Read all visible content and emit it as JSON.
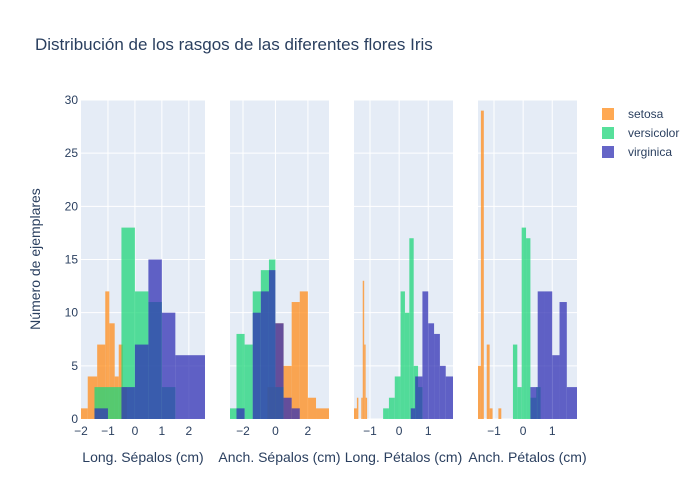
{
  "chart_data": {
    "type": "bar",
    "title": "Distribución de los rasgos de las diferentes flores Iris",
    "ylabel": "Número de ejemplares",
    "ylim": [
      0,
      30
    ],
    "y_ticks": [
      0,
      5,
      10,
      15,
      20,
      25,
      30
    ],
    "legend": {
      "placement": "top-right",
      "entries": [
        "setosa",
        "versicolor",
        "virginica"
      ]
    },
    "colors": {
      "setosa": "#FF8C1A",
      "versicolor": "#1FD679",
      "virginica": "#3232B4"
    },
    "bar_opacity": 0.75,
    "grid": true,
    "panels": [
      {
        "xlabel": "Long. Sépalos (cm)",
        "xlim": [
          -2,
          2.6
        ],
        "x_ticks": [
          -2,
          -1,
          0,
          1,
          2
        ],
        "x_tick_labels": [
          "−2",
          "−1",
          "0",
          "1",
          "2"
        ],
        "series": [
          {
            "name": "setosa",
            "bins": [
              {
                "x0": -2.0,
                "x1": -1.75,
                "count": 1
              },
              {
                "x0": -1.75,
                "x1": -1.4,
                "count": 4
              },
              {
                "x0": -1.4,
                "x1": -1.1,
                "count": 7
              },
              {
                "x0": -1.1,
                "x1": -0.95,
                "count": 12
              },
              {
                "x0": -0.95,
                "x1": -0.75,
                "count": 9
              },
              {
                "x0": -0.75,
                "x1": -0.6,
                "count": 4
              },
              {
                "x0": -0.6,
                "x1": -0.45,
                "count": 7
              },
              {
                "x0": -0.45,
                "x1": -0.3,
                "count": 3
              }
            ]
          },
          {
            "name": "versicolor",
            "bins": [
              {
                "x0": -1.5,
                "x1": -0.5,
                "count": 3
              },
              {
                "x0": -0.5,
                "x1": 0.0,
                "count": 18
              },
              {
                "x0": 0.0,
                "x1": 0.5,
                "count": 12
              },
              {
                "x0": 0.5,
                "x1": 1.0,
                "count": 11
              },
              {
                "x0": 1.0,
                "x1": 1.5,
                "count": 3
              }
            ]
          },
          {
            "name": "virginica",
            "bins": [
              {
                "x0": -1.5,
                "x1": -1.0,
                "count": 1
              },
              {
                "x0": -0.5,
                "x1": 0.0,
                "count": 3
              },
              {
                "x0": 0.0,
                "x1": 0.5,
                "count": 7
              },
              {
                "x0": 0.5,
                "x1": 1.0,
                "count": 15
              },
              {
                "x0": 1.0,
                "x1": 1.5,
                "count": 10
              },
              {
                "x0": 1.5,
                "x1": 2.6,
                "count": 6
              }
            ]
          }
        ]
      },
      {
        "xlabel": "Anch. Sépalos (cm)",
        "xlim": [
          -2.8,
          3.3
        ],
        "x_ticks": [
          -2,
          0,
          2
        ],
        "x_tick_labels": [
          "−2",
          "0",
          "2"
        ],
        "series": [
          {
            "name": "setosa",
            "bins": [
              {
                "x0": -0.5,
                "x1": 0.0,
                "count": 3
              },
              {
                "x0": 0.0,
                "x1": 0.5,
                "count": 9
              },
              {
                "x0": 0.5,
                "x1": 1.0,
                "count": 5
              },
              {
                "x0": 1.0,
                "x1": 1.5,
                "count": 11
              },
              {
                "x0": 1.5,
                "x1": 2.0,
                "count": 12
              },
              {
                "x0": 2.0,
                "x1": 2.5,
                "count": 2
              },
              {
                "x0": 2.5,
                "x1": 3.3,
                "count": 1
              }
            ]
          },
          {
            "name": "versicolor",
            "bins": [
              {
                "x0": -2.8,
                "x1": -2.4,
                "count": 1
              },
              {
                "x0": -2.4,
                "x1": -1.9,
                "count": 8
              },
              {
                "x0": -1.9,
                "x1": -1.4,
                "count": 7
              },
              {
                "x0": -1.4,
                "x1": -0.9,
                "count": 12
              },
              {
                "x0": -0.9,
                "x1": -0.4,
                "count": 14
              },
              {
                "x0": -0.4,
                "x1": 0.0,
                "count": 15
              },
              {
                "x0": 0.0,
                "x1": 0.5,
                "count": 3
              }
            ]
          },
          {
            "name": "virginica",
            "bins": [
              {
                "x0": -2.4,
                "x1": -1.9,
                "count": 1
              },
              {
                "x0": -1.4,
                "x1": -0.9,
                "count": 10
              },
              {
                "x0": -0.9,
                "x1": -0.4,
                "count": 12
              },
              {
                "x0": -0.4,
                "x1": 0.0,
                "count": 14
              },
              {
                "x0": 0.0,
                "x1": 0.5,
                "count": 9
              },
              {
                "x0": 0.5,
                "x1": 1.0,
                "count": 2
              },
              {
                "x0": 1.0,
                "x1": 1.5,
                "count": 1
              }
            ]
          }
        ]
      },
      {
        "xlabel": "Long. Pétalos (cm)",
        "xlim": [
          -1.55,
          1.85
        ],
        "x_ticks": [
          -1,
          0,
          1
        ],
        "x_tick_labels": [
          "−1",
          "0",
          "1"
        ],
        "series": [
          {
            "name": "setosa",
            "bins": [
              {
                "x0": -1.55,
                "x1": -1.45,
                "count": 1
              },
              {
                "x0": -1.45,
                "x1": -1.4,
                "count": 2
              },
              {
                "x0": -1.3,
                "x1": -1.25,
                "count": 2
              },
              {
                "x0": -1.25,
                "x1": -1.2,
                "count": 13
              },
              {
                "x0": -1.2,
                "x1": -1.15,
                "count": 7
              },
              {
                "x0": -1.15,
                "x1": -1.1,
                "count": 2
              }
            ]
          },
          {
            "name": "versicolor",
            "bins": [
              {
                "x0": -0.55,
                "x1": -0.35,
                "count": 1
              },
              {
                "x0": -0.35,
                "x1": -0.15,
                "count": 2
              },
              {
                "x0": -0.15,
                "x1": 0.05,
                "count": 4
              },
              {
                "x0": 0.05,
                "x1": 0.2,
                "count": 12
              },
              {
                "x0": 0.2,
                "x1": 0.35,
                "count": 10
              },
              {
                "x0": 0.35,
                "x1": 0.5,
                "count": 17
              },
              {
                "x0": 0.5,
                "x1": 0.65,
                "count": 5
              },
              {
                "x0": 0.65,
                "x1": 0.8,
                "count": 3
              }
            ]
          },
          {
            "name": "virginica",
            "bins": [
              {
                "x0": 0.4,
                "x1": 0.55,
                "count": 1
              },
              {
                "x0": 0.55,
                "x1": 0.8,
                "count": 4
              },
              {
                "x0": 0.8,
                "x1": 1.0,
                "count": 12
              },
              {
                "x0": 1.0,
                "x1": 1.2,
                "count": 9
              },
              {
                "x0": 1.2,
                "x1": 1.4,
                "count": 8
              },
              {
                "x0": 1.4,
                "x1": 1.6,
                "count": 5
              },
              {
                "x0": 1.6,
                "x1": 1.85,
                "count": 4
              }
            ]
          }
        ]
      },
      {
        "xlabel": "Anch. Pétalos (cm)",
        "xlim": [
          -1.55,
          1.85
        ],
        "x_ticks": [
          -1,
          0,
          1
        ],
        "x_tick_labels": [
          "−1",
          "0",
          "1"
        ],
        "series": [
          {
            "name": "setosa",
            "bins": [
              {
                "x0": -1.55,
                "x1": -1.45,
                "count": 5
              },
              {
                "x0": -1.45,
                "x1": -1.35,
                "count": 29
              },
              {
                "x0": -1.25,
                "x1": -1.15,
                "count": 7
              },
              {
                "x0": -1.15,
                "x1": -1.05,
                "count": 1
              },
              {
                "x0": -0.85,
                "x1": -0.75,
                "count": 1
              }
            ]
          },
          {
            "name": "versicolor",
            "bins": [
              {
                "x0": -0.35,
                "x1": -0.2,
                "count": 7
              },
              {
                "x0": -0.2,
                "x1": -0.05,
                "count": 3
              },
              {
                "x0": -0.05,
                "x1": 0.1,
                "count": 18
              },
              {
                "x0": 0.1,
                "x1": 0.25,
                "count": 17
              },
              {
                "x0": 0.25,
                "x1": 0.45,
                "count": 2
              },
              {
                "x0": 0.45,
                "x1": 0.6,
                "count": 3
              }
            ]
          },
          {
            "name": "virginica",
            "bins": [
              {
                "x0": 0.25,
                "x1": 0.5,
                "count": 3
              },
              {
                "x0": 0.5,
                "x1": 0.75,
                "count": 12
              },
              {
                "x0": 0.75,
                "x1": 1.0,
                "count": 12
              },
              {
                "x0": 1.0,
                "x1": 1.25,
                "count": 6
              },
              {
                "x0": 1.25,
                "x1": 1.5,
                "count": 11
              },
              {
                "x0": 1.5,
                "x1": 1.85,
                "count": 3
              }
            ]
          }
        ]
      }
    ]
  }
}
